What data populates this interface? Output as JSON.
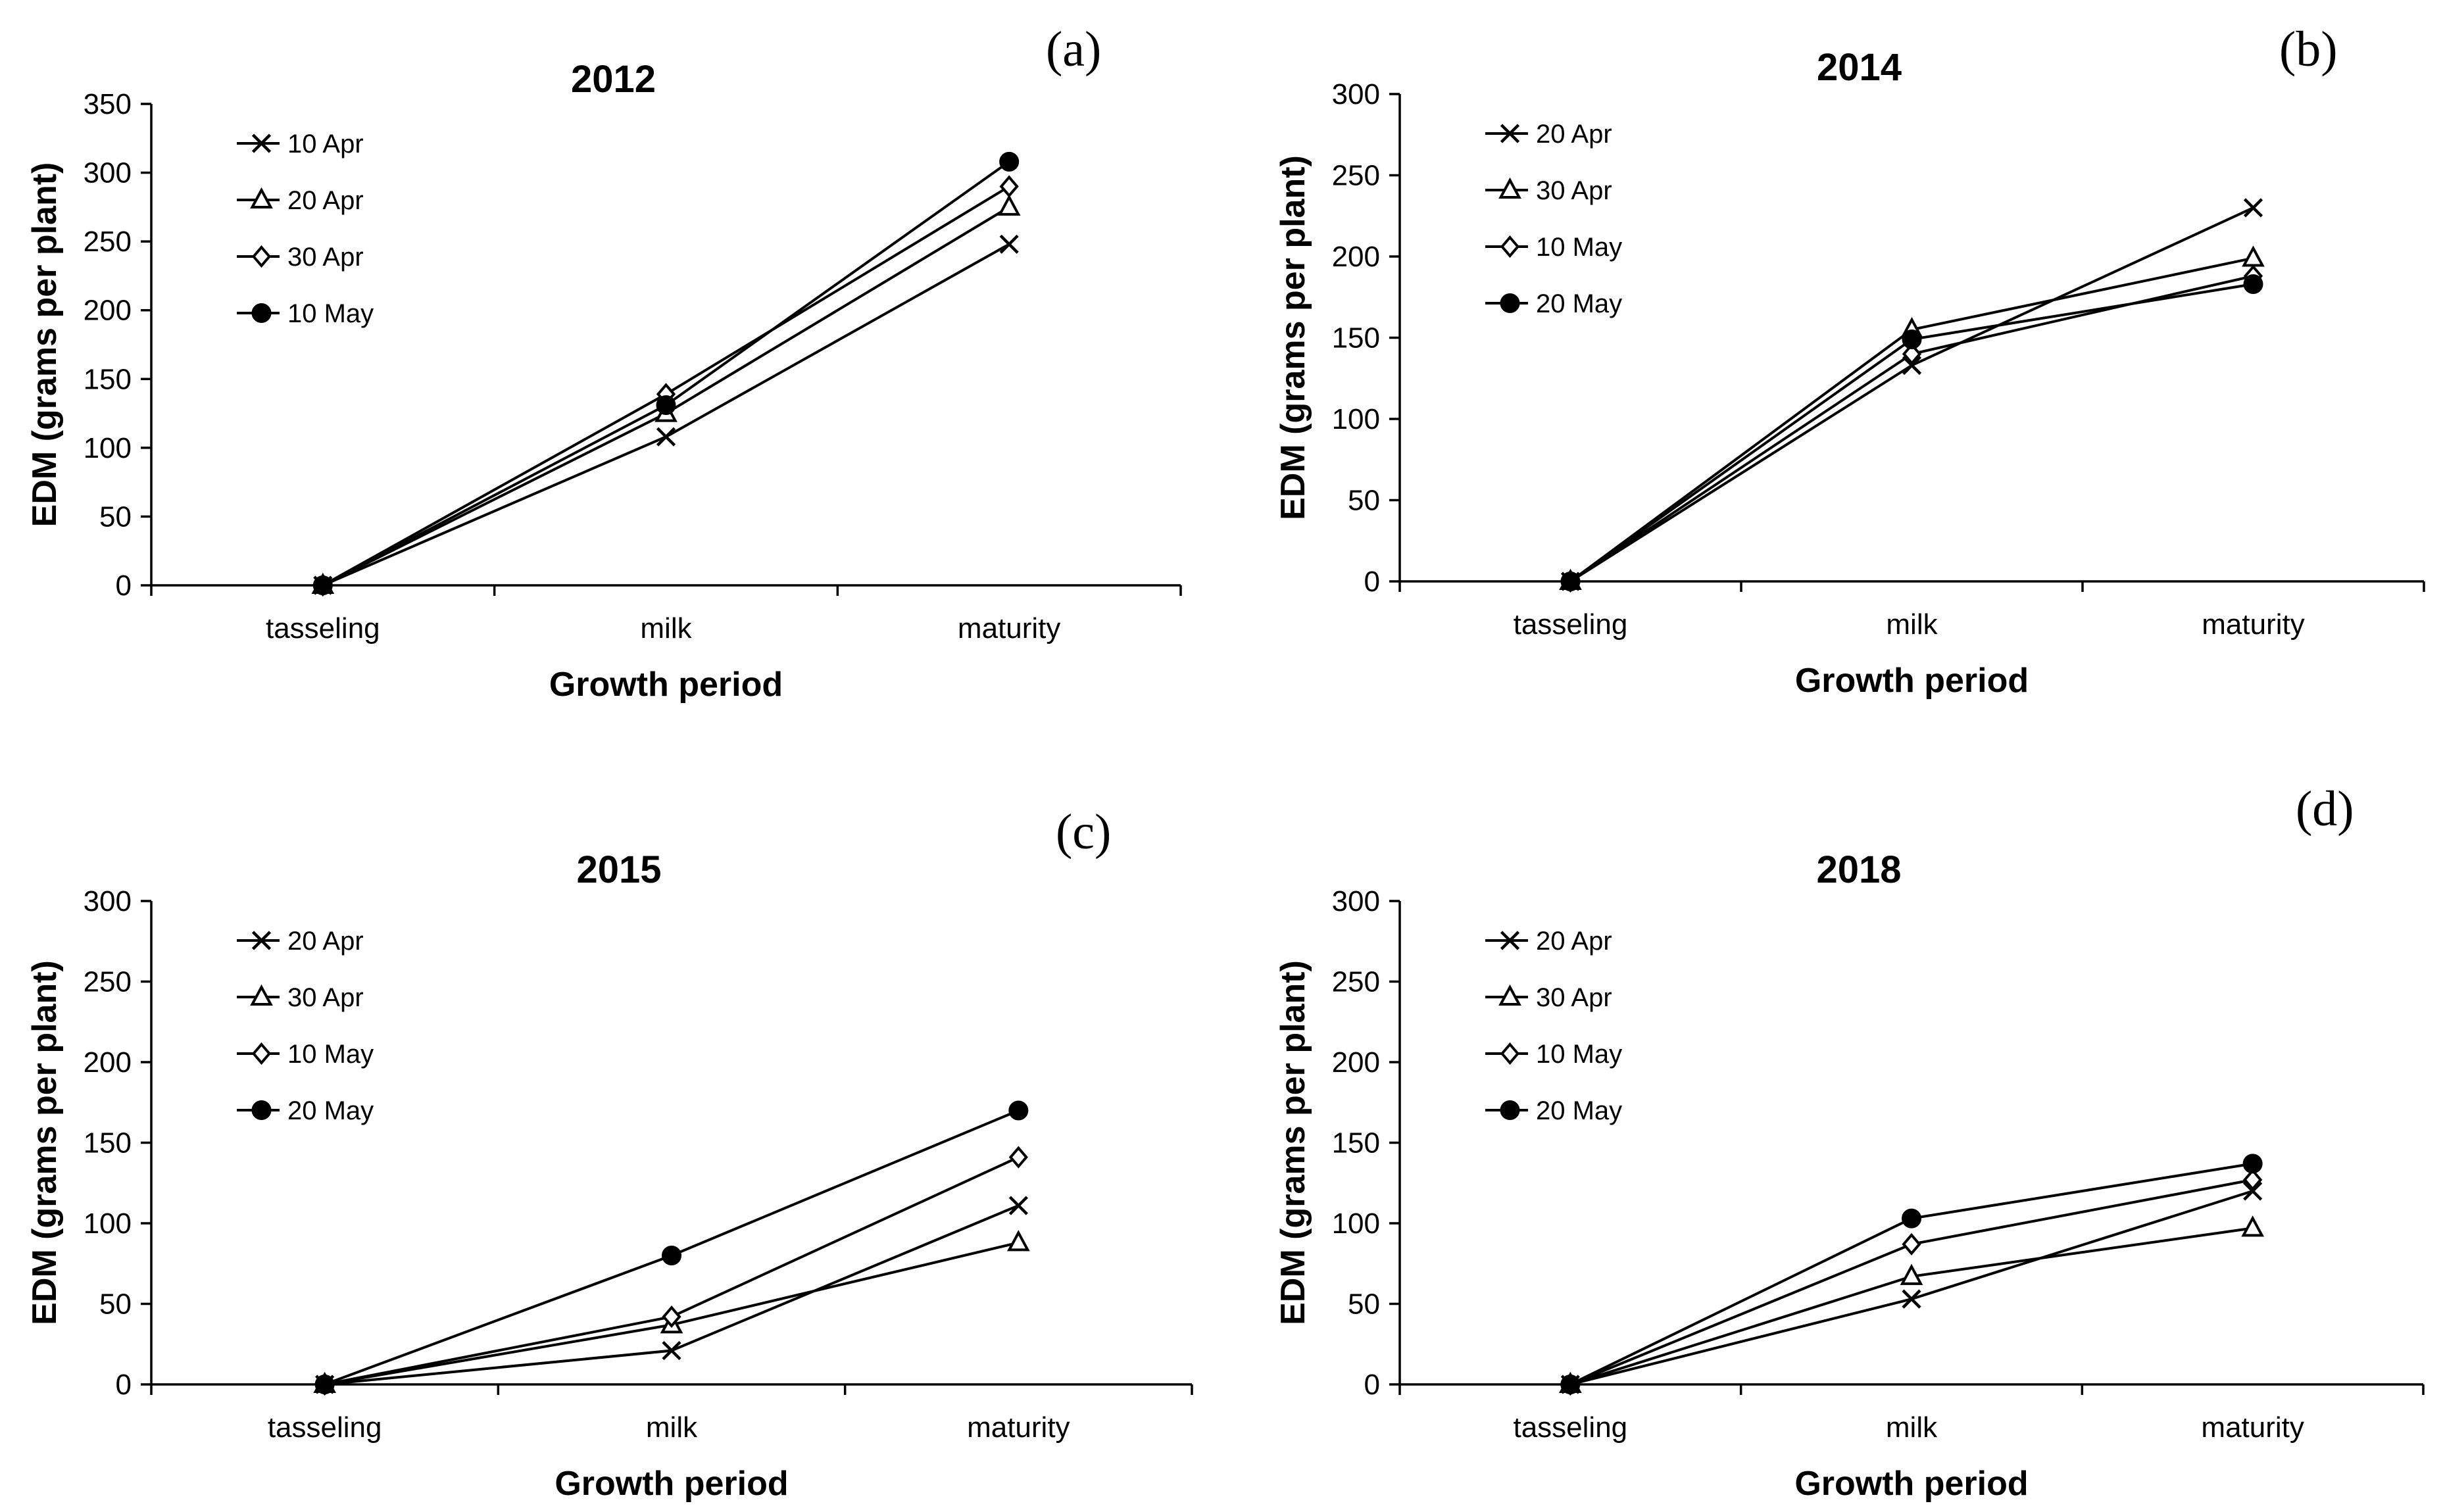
{
  "chart_data": [
    {
      "panel": "(a)",
      "type": "line",
      "title": "2012",
      "xlabel": "Growth period",
      "ylabel": "EDM (grams per plant)",
      "categories": [
        "tasseling",
        "milk",
        "maturity"
      ],
      "ylim": [
        0,
        350
      ],
      "yticks": [
        "0",
        "50",
        "100",
        "150",
        "200",
        "250",
        "300",
        "350"
      ],
      "legend_position": "top-left",
      "series": [
        {
          "name": "10 Apr",
          "marker": "x",
          "values": [
            0,
            108,
            248
          ]
        },
        {
          "name": "20 Apr",
          "marker": "triangle",
          "values": [
            0,
            125,
            275
          ]
        },
        {
          "name": "30 Apr",
          "marker": "diamond",
          "values": [
            0,
            139,
            290
          ]
        },
        {
          "name": "10 May",
          "marker": "circle",
          "values": [
            0,
            131,
            308
          ]
        }
      ]
    },
    {
      "panel": "(b)",
      "type": "line",
      "title": "2014",
      "xlabel": "Growth period",
      "ylabel": "EDM (grams per plant)",
      "categories": [
        "tasseling",
        "milk",
        "maturity"
      ],
      "ylim": [
        0,
        300
      ],
      "yticks": [
        "0",
        "50",
        "100",
        "150",
        "200",
        "250",
        "300"
      ],
      "legend_position": "top-left",
      "series": [
        {
          "name": "20 Apr",
          "marker": "x",
          "values": [
            0,
            133,
            230
          ]
        },
        {
          "name": "30 Apr",
          "marker": "triangle",
          "values": [
            0,
            155,
            199
          ]
        },
        {
          "name": "10 May",
          "marker": "diamond",
          "values": [
            0,
            140,
            188
          ]
        },
        {
          "name": "20 May",
          "marker": "circle",
          "values": [
            0,
            149,
            183
          ]
        }
      ]
    },
    {
      "panel": "(c)",
      "type": "line",
      "title": "2015",
      "xlabel": "Growth period",
      "ylabel": "EDM (grams per plant)",
      "categories": [
        "tasseling",
        "milk",
        "maturity"
      ],
      "ylim": [
        0,
        300
      ],
      "yticks": [
        "0",
        "50",
        "100",
        "150",
        "200",
        "250",
        "300"
      ],
      "legend_position": "top-left",
      "series": [
        {
          "name": "20 Apr",
          "marker": "x",
          "values": [
            0,
            21,
            111
          ]
        },
        {
          "name": "30 Apr",
          "marker": "triangle",
          "values": [
            0,
            37,
            88
          ]
        },
        {
          "name": "10 May",
          "marker": "diamond",
          "values": [
            0,
            42,
            141
          ]
        },
        {
          "name": "20 May",
          "marker": "circle",
          "values": [
            0,
            80,
            170
          ]
        }
      ]
    },
    {
      "panel": "(d)",
      "type": "line",
      "title": "2018",
      "xlabel": "Growth period",
      "ylabel": "EDM (grams per plant)",
      "categories": [
        "tasseling",
        "milk",
        "maturity"
      ],
      "ylim": [
        0,
        300
      ],
      "yticks": [
        "0",
        "50",
        "100",
        "150",
        "200",
        "250",
        "300"
      ],
      "legend_position": "top-left",
      "series": [
        {
          "name": "20 Apr",
          "marker": "x",
          "values": [
            0,
            53,
            120
          ]
        },
        {
          "name": "30 Apr",
          "marker": "triangle",
          "values": [
            0,
            67,
            97
          ]
        },
        {
          "name": "10 May",
          "marker": "diamond",
          "values": [
            0,
            87,
            127
          ]
        },
        {
          "name": "20 May",
          "marker": "circle",
          "values": [
            0,
            103,
            137
          ]
        }
      ]
    }
  ]
}
